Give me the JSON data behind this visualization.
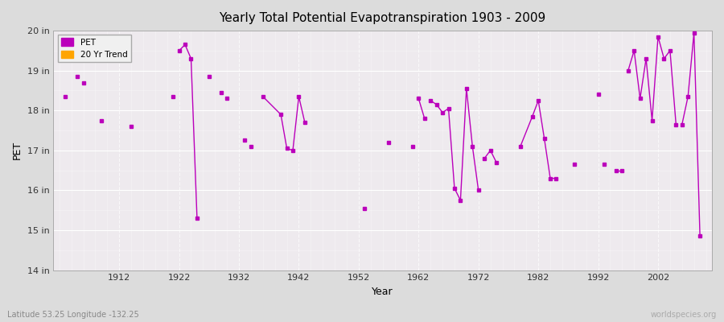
{
  "title": "Yearly Total Potential Evapotranspiration 1903 - 2009",
  "xlabel": "Year",
  "ylabel": "PET",
  "subtitle": "Latitude 53.25 Longitude -132.25",
  "watermark": "worldspecies.org",
  "ylim": [
    14,
    20
  ],
  "ytick_labels": [
    "14 in",
    "15 in",
    "16 in",
    "17 in",
    "18 in",
    "19 in",
    "20 in"
  ],
  "ytick_values": [
    14,
    15,
    16,
    17,
    18,
    19,
    20
  ],
  "xtick_values": [
    1912,
    1922,
    1932,
    1942,
    1952,
    1962,
    1972,
    1982,
    1992,
    2002
  ],
  "xlim": [
    1901,
    2011
  ],
  "pet_color": "#BB00BB",
  "trend_color": "#FFA500",
  "bg_color": "#DCDCDC",
  "plot_bg": "#EEEAEE",
  "legend_items": [
    "PET",
    "20 Yr Trend"
  ],
  "isolated_points": [
    [
      1903,
      18.35
    ],
    [
      1905,
      18.85
    ],
    [
      1906,
      18.7
    ],
    [
      1909,
      17.75
    ],
    [
      1914,
      17.6
    ],
    [
      1921,
      18.35
    ],
    [
      1927,
      18.85
    ],
    [
      1929,
      18.45
    ],
    [
      1930,
      18.3
    ],
    [
      1933,
      17.25
    ],
    [
      1934,
      17.1
    ],
    [
      1953,
      15.55
    ],
    [
      1957,
      17.2
    ],
    [
      1961,
      17.1
    ],
    [
      1988,
      16.65
    ],
    [
      1993,
      16.65
    ]
  ],
  "connected_segments": [
    [
      [
        1922,
        19.5
      ],
      [
        1923,
        19.65
      ],
      [
        1924,
        19.3
      ],
      [
        1925,
        15.3
      ]
    ],
    [
      [
        1936,
        18.35
      ],
      [
        1939,
        17.9
      ],
      [
        1940,
        17.05
      ],
      [
        1941,
        17.0
      ],
      [
        1942,
        18.35
      ],
      [
        1943,
        17.7
      ]
    ],
    [
      [
        1962,
        18.3
      ],
      [
        1963,
        17.8
      ]
    ],
    [
      [
        1964,
        18.25
      ],
      [
        1965,
        18.15
      ],
      [
        1966,
        17.95
      ],
      [
        1967,
        18.05
      ],
      [
        1968,
        16.05
      ],
      [
        1969,
        15.75
      ],
      [
        1970,
        18.55
      ],
      [
        1971,
        17.1
      ],
      [
        1972,
        16.0
      ]
    ],
    [
      [
        1973,
        16.8
      ],
      [
        1974,
        17.0
      ],
      [
        1975,
        16.7
      ]
    ],
    [
      [
        1979,
        17.1
      ],
      [
        1981,
        17.85
      ],
      [
        1982,
        18.25
      ],
      [
        1983,
        17.3
      ],
      [
        1984,
        16.3
      ],
      [
        1985,
        16.3
      ]
    ],
    [
      [
        1992,
        18.4
      ]
    ],
    [
      [
        1995,
        16.5
      ],
      [
        1996,
        16.5
      ]
    ],
    [
      [
        1997,
        19.0
      ],
      [
        1998,
        19.5
      ],
      [
        1999,
        18.3
      ],
      [
        2000,
        19.3
      ],
      [
        2001,
        17.75
      ],
      [
        2002,
        19.85
      ],
      [
        2003,
        19.3
      ],
      [
        2004,
        19.5
      ],
      [
        2005,
        17.65
      ]
    ],
    [
      [
        2006,
        17.65
      ],
      [
        2007,
        18.35
      ],
      [
        2008,
        19.95
      ],
      [
        2009,
        14.85
      ]
    ]
  ]
}
